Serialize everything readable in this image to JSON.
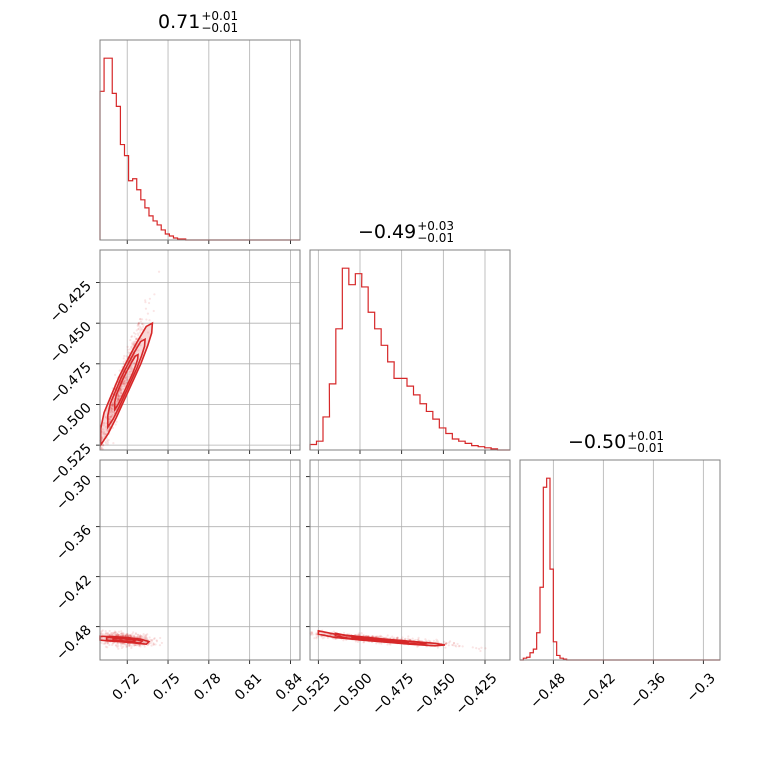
{
  "colors": {
    "series": "#d62728",
    "grid": "#b0b0b0",
    "frame": "#808080"
  },
  "titles": [
    {
      "main": "0.71",
      "plus": "+0.01",
      "minus": "−0.01"
    },
    {
      "main": "−0.49",
      "plus": "+0.03",
      "minus": "−0.01"
    },
    {
      "main": "−0.50",
      "plus": "+0.01",
      "minus": "−0.01"
    }
  ],
  "chart_data": [
    {
      "type": "area",
      "panel": "hist-0",
      "bins_x": [
        0.7,
        0.703,
        0.706,
        0.709,
        0.712,
        0.715,
        0.718,
        0.721,
        0.724,
        0.727,
        0.73,
        0.733,
        0.736,
        0.739,
        0.742,
        0.745,
        0.748,
        0.751,
        0.754,
        0.757,
        0.76,
        0.763,
        0.766,
        0.769,
        0.772,
        0.775,
        0.778,
        0.781,
        0.784,
        0.787,
        0.79,
        0.793,
        0.796,
        0.799,
        0.802,
        0.805,
        0.808,
        0.811,
        0.814,
        0.817,
        0.82,
        0.823,
        0.826,
        0.829,
        0.832,
        0.835,
        0.838,
        0.841,
        0.844,
        0.847
      ],
      "counts": [
        148,
        181,
        181,
        146,
        133,
        95,
        84,
        59,
        61,
        50,
        40,
        32,
        24,
        19,
        15,
        10,
        6,
        4,
        2,
        1,
        1,
        0,
        0,
        0,
        0,
        0,
        0,
        0,
        0,
        0,
        0,
        0,
        0,
        0,
        0,
        0,
        0,
        0,
        0,
        0,
        0,
        0,
        0,
        0,
        0,
        0,
        0,
        0,
        0,
        0
      ],
      "xlim": [
        0.7,
        0.847
      ],
      "xticks": [
        0.72,
        0.75,
        0.78,
        0.81,
        0.84
      ]
    },
    {
      "type": "area",
      "panel": "hist-1",
      "bins_x": [
        -0.53,
        -0.5261,
        -0.5222,
        -0.5184,
        -0.5145,
        -0.5106,
        -0.5067,
        -0.5028,
        -0.499,
        -0.4951,
        -0.4912,
        -0.4873,
        -0.4834,
        -0.4796,
        -0.4757,
        -0.4718,
        -0.4679,
        -0.464,
        -0.4602,
        -0.4563,
        -0.4524,
        -0.4485,
        -0.4446,
        -0.4408,
        -0.4369,
        -0.433,
        -0.4291,
        -0.4252,
        -0.4214,
        -0.4175,
        -0.4136
      ],
      "counts": [
        5,
        8,
        30,
        60,
        110,
        165,
        150,
        160,
        148,
        125,
        110,
        95,
        80,
        65,
        65,
        58,
        50,
        42,
        35,
        28,
        20,
        15,
        10,
        8,
        6,
        4,
        3,
        2,
        1,
        0,
        0
      ],
      "xlim": [
        -0.53,
        -0.41
      ],
      "xticks": [
        -0.525,
        -0.5,
        -0.475,
        -0.45,
        -0.425
      ]
    },
    {
      "type": "area",
      "panel": "hist-2",
      "bins_x": [
        -0.52,
        -0.516,
        -0.512,
        -0.508,
        -0.504,
        -0.5,
        -0.496,
        -0.492,
        -0.488,
        -0.484,
        -0.48,
        -0.476,
        -0.472,
        -0.468,
        -0.464,
        -0.46,
        -0.456,
        -0.452,
        -0.448,
        -0.444,
        -0.44,
        -0.436,
        -0.432,
        -0.428,
        -0.424,
        -0.42,
        -0.416,
        -0.412,
        -0.408,
        -0.404,
        -0.4,
        -0.396,
        -0.392,
        -0.388,
        -0.384,
        -0.38,
        -0.376,
        -0.372,
        -0.368,
        -0.364,
        -0.36,
        -0.356,
        -0.352,
        -0.348,
        -0.344,
        -0.34,
        -0.336,
        -0.332,
        -0.328,
        -0.324,
        -0.32,
        -0.316,
        -0.312,
        -0.308,
        -0.304,
        -0.3,
        -0.296,
        -0.292,
        -0.288,
        -0.284
      ],
      "counts": [
        0,
        2,
        3,
        8,
        12,
        30,
        80,
        190,
        200,
        100,
        20,
        5,
        2,
        1,
        0,
        0,
        0,
        0,
        0,
        0,
        0,
        0,
        0,
        0,
        0,
        0,
        0,
        0,
        0,
        0,
        0,
        0,
        0,
        0,
        0,
        0,
        0,
        0,
        0,
        0,
        0,
        0,
        0,
        0,
        0,
        0,
        0,
        0,
        0,
        0,
        0,
        0,
        0,
        0,
        0,
        0,
        0,
        0,
        0,
        0
      ],
      "xlim": [
        -0.52,
        -0.28
      ],
      "xticks": [
        -0.48,
        -0.42,
        -0.36,
        -0.3
      ]
    },
    {
      "type": "scatter",
      "panel": "2d-1-0",
      "x_param": "0.71",
      "y_param": "-0.49",
      "xlim": [
        0.7,
        0.847
      ],
      "ylim": [
        -0.528,
        -0.405
      ],
      "yticks": [
        -0.525,
        -0.5,
        -0.475,
        -0.45,
        -0.425
      ],
      "ytick_labels": [
        "−0.525",
        "−0.500",
        "−0.475",
        "−0.450",
        "−0.425"
      ],
      "center": [
        0.715,
        -0.49
      ],
      "sd": [
        0.009,
        0.022
      ],
      "corr": 0.97,
      "contour_points": [
        [
          0.7005,
          -0.525
        ],
        [
          0.706,
          -0.518
        ],
        [
          0.712,
          -0.508
        ],
        [
          0.718,
          -0.497
        ],
        [
          0.724,
          -0.486
        ],
        [
          0.73,
          -0.475
        ],
        [
          0.735,
          -0.464
        ],
        [
          0.738,
          -0.456
        ],
        [
          0.7385,
          -0.45
        ],
        [
          0.734,
          -0.452
        ],
        [
          0.727,
          -0.462
        ],
        [
          0.72,
          -0.473
        ],
        [
          0.714,
          -0.483
        ],
        [
          0.708,
          -0.495
        ],
        [
          0.703,
          -0.505
        ],
        [
          0.7005,
          -0.515
        ]
      ]
    },
    {
      "type": "scatter",
      "panel": "2d-2-0",
      "x_param": "0.71",
      "y_param": "-0.50",
      "xlim": [
        0.7,
        0.847
      ],
      "ylim": [
        -0.52,
        -0.28
      ],
      "xticks": [
        0.72,
        0.75,
        0.78,
        0.81,
        0.84
      ],
      "xtick_labels": [
        "0.72",
        "0.75",
        "0.78",
        "0.81",
        "0.84"
      ],
      "yticks": [
        -0.48,
        -0.42,
        -0.36,
        -0.3
      ],
      "ytick_labels": [
        "−0.48",
        "−0.42",
        "−0.36",
        "−0.30"
      ],
      "center": [
        0.718,
        -0.495
      ],
      "sd": [
        0.01,
        0.004
      ],
      "corr": -0.3,
      "contour_points": [
        [
          0.7,
          -0.4915
        ],
        [
          0.71,
          -0.492
        ],
        [
          0.72,
          -0.493
        ],
        [
          0.73,
          -0.495
        ],
        [
          0.736,
          -0.498
        ],
        [
          0.734,
          -0.501
        ],
        [
          0.725,
          -0.4995
        ],
        [
          0.715,
          -0.498
        ],
        [
          0.705,
          -0.497
        ],
        [
          0.7,
          -0.496
        ]
      ]
    },
    {
      "type": "scatter",
      "panel": "2d-2-1",
      "x_param": "-0.49",
      "y_param": "-0.50",
      "xlim": [
        -0.53,
        -0.41
      ],
      "ylim": [
        -0.52,
        -0.28
      ],
      "xticks": [
        -0.525,
        -0.5,
        -0.475,
        -0.45,
        -0.425
      ],
      "xtick_labels": [
        "−0.525",
        "−0.500",
        "−0.475",
        "−0.450",
        "−0.425"
      ],
      "center": [
        -0.49,
        -0.495
      ],
      "sd": [
        0.022,
        0.004
      ],
      "corr": -0.85,
      "contour_points": [
        [
          -0.525,
          -0.485
        ],
        [
          -0.515,
          -0.489
        ],
        [
          -0.5,
          -0.492
        ],
        [
          -0.485,
          -0.495
        ],
        [
          -0.47,
          -0.4975
        ],
        [
          -0.455,
          -0.5
        ],
        [
          -0.449,
          -0.502
        ],
        [
          -0.455,
          -0.503
        ],
        [
          -0.47,
          -0.501
        ],
        [
          -0.485,
          -0.4985
        ],
        [
          -0.5,
          -0.496
        ],
        [
          -0.515,
          -0.493
        ],
        [
          -0.525,
          -0.489
        ]
      ]
    }
  ]
}
